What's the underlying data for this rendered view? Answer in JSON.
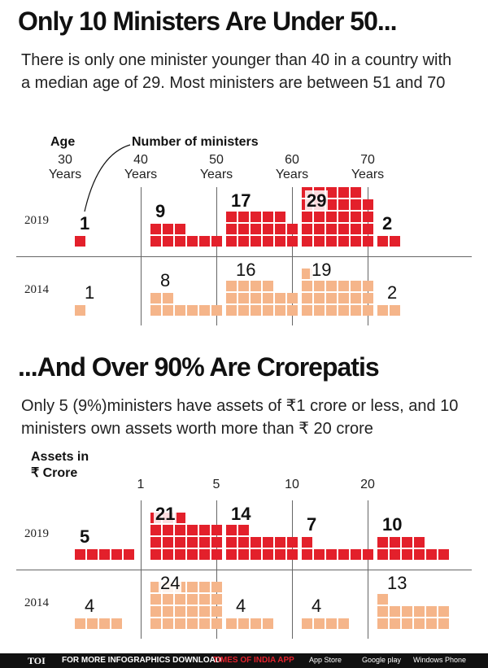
{
  "chart_data": [
    {
      "type": "waffle",
      "title": "Only 10 Ministers Are Under 50...",
      "subtitle": "There is only one minister younger than 40 in a country with a median age of 29. Most ministers are between 51 and 70",
      "x_label": "Age",
      "y_label": "Number of ministers",
      "xticks": [
        {
          "value": 30,
          "label": "30 Years"
        },
        {
          "value": 40,
          "label": "40 Years"
        },
        {
          "value": 50,
          "label": "50 Years"
        },
        {
          "value": 60,
          "label": "60 Years"
        },
        {
          "value": 70,
          "label": "70 Years"
        }
      ],
      "series": [
        {
          "name": "2019",
          "color": "#e3202b",
          "values": [
            1,
            9,
            17,
            29,
            2
          ]
        },
        {
          "name": "2014",
          "color": "#f5b58a",
          "values": [
            1,
            8,
            16,
            19,
            2
          ]
        }
      ]
    },
    {
      "type": "waffle",
      "title": "...And Over 90% Are Crorepatis",
      "subtitle": "Only 5 (9%)ministers have assets of ₹1 crore or less, and 10 ministers own assets worth more than ₹ 20 crore",
      "x_label": "Assets in ₹ Crore",
      "xticks": [
        1,
        5,
        10,
        20
      ],
      "series": [
        {
          "name": "2019",
          "color": "#e3202b",
          "values": [
            5,
            21,
            14,
            7,
            10
          ]
        },
        {
          "name": "2014",
          "color": "#f5b58a",
          "values": [
            4,
            24,
            4,
            4,
            13
          ]
        }
      ]
    }
  ],
  "footer": {
    "brand": "TOI",
    "text": "FOR MORE INFOGRAPHICS DOWNLOAD",
    "app": "TIMES OF INDIA APP",
    "stores": [
      "App Store",
      "Google play",
      "Windows Phone"
    ]
  }
}
